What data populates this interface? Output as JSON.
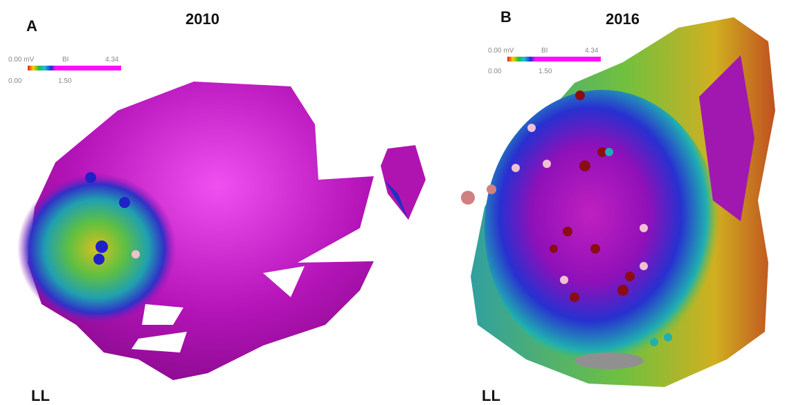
{
  "panels": [
    {
      "label": "A",
      "year": "2010",
      "colorbar": {
        "min_label": "0.00 mV",
        "mode": "BI",
        "max_label": "4.34",
        "low_label": "0.00",
        "threshold_label": "1.50"
      },
      "view": "LL"
    },
    {
      "label": "B",
      "year": "2016",
      "colorbar": {
        "min_label": "0.00 mV",
        "mode": "BI",
        "max_label": "4.34",
        "low_label": "0.00",
        "threshold_label": "1.50"
      },
      "view": "LL"
    }
  ]
}
